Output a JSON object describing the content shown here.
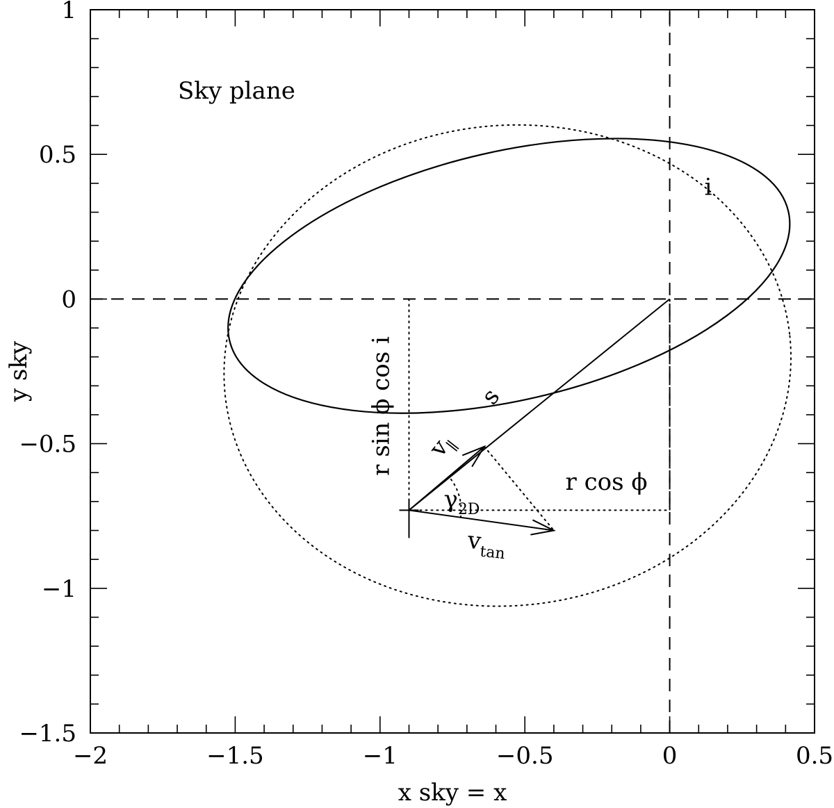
{
  "chart_data": {
    "type": "diagram",
    "xlabel": "x sky = x",
    "ylabel": "y sky",
    "xlim": [
      -2,
      0.5
    ],
    "ylim": [
      -1.5,
      1
    ],
    "x_ticks": [
      -2,
      -1.5,
      -1,
      -0.5,
      0,
      0.5
    ],
    "y_ticks": [
      -1.5,
      -1,
      -0.5,
      0,
      0.5,
      1
    ],
    "x_tick_labels": [
      "−2",
      "−1.5",
      "−1",
      "−0.5",
      "0",
      "0.5"
    ],
    "y_tick_labels": [
      "−1.5",
      "−1",
      "−0.5",
      "0",
      "0.5",
      "1"
    ],
    "minor_step": 0.1,
    "plane_label": "Sky plane",
    "true_orbit": {
      "style": "dotted",
      "cx": -0.56,
      "cy": -0.23,
      "rx": 0.98,
      "ry": 0.83,
      "rotation_deg": 6
    },
    "projected_orbit": {
      "style": "solid",
      "cx": -0.555,
      "cy": 0.08,
      "rx": 0.99,
      "ry": 0.43,
      "rotation_deg": 13
    },
    "reference_axes": [
      {
        "style": "dashed",
        "from": [
          -2,
          0
        ],
        "to": [
          0.5,
          0
        ]
      },
      {
        "style": "dashed",
        "from": [
          0,
          -1.5
        ],
        "to": [
          0,
          1
        ]
      }
    ],
    "star_position": [
      -0.9,
      -0.73
    ],
    "guides": [
      {
        "style": "dotted",
        "from": [
          -0.9,
          0
        ],
        "to": [
          -0.9,
          -0.73
        ]
      },
      {
        "style": "dotted",
        "from": [
          -0.9,
          -0.73
        ],
        "to": [
          0,
          -0.73
        ]
      },
      {
        "style": "dashed",
        "from": [
          0,
          -0.73
        ],
        "to": [
          0,
          0
        ]
      },
      {
        "style": "dotted",
        "from": [
          -0.64,
          -0.51
        ],
        "to": [
          -0.4,
          -0.8
        ]
      }
    ],
    "vectors": [
      {
        "name": "s",
        "style": "solid",
        "from": [
          -0.9,
          -0.73
        ],
        "to": [
          0,
          0
        ],
        "arrow": false
      },
      {
        "name": "v_parallel",
        "style": "solid",
        "from": [
          -0.9,
          -0.73
        ],
        "to": [
          -0.64,
          -0.51
        ],
        "arrow": true
      },
      {
        "name": "v_tan",
        "style": "solid",
        "from": [
          -0.9,
          -0.73
        ],
        "to": [
          -0.4,
          -0.8
        ],
        "arrow": true
      }
    ],
    "angle_arc": {
      "style": "dotted",
      "center": [
        -0.9,
        -0.73
      ],
      "radius": 0.18,
      "from_deg": -8,
      "to_deg": 39
    },
    "annotations": {
      "inclination": {
        "text": "i",
        "at": [
          0.12,
          0.36
        ]
      },
      "separation": {
        "text": "s",
        "at": [
          -0.61,
          -0.37
        ]
      },
      "r_cos_phi": {
        "text": "r  cos  ϕ",
        "at": [
          -0.36,
          -0.66
        ]
      },
      "r_sin_phi_cos_i": {
        "text": "r  sin  ϕ  cos  i",
        "at": [
          -0.97,
          -0.37
        ]
      },
      "v_parallel": {
        "text": "v",
        "sub": "∥",
        "at": [
          -0.79,
          -0.55
        ]
      },
      "gamma_2d": {
        "text": "γ",
        "sub": "2D",
        "at": [
          -0.78,
          -0.72
        ]
      },
      "v_tan": {
        "text": "v",
        "sub": "tan",
        "at": [
          -0.7,
          -0.86
        ]
      }
    }
  }
}
